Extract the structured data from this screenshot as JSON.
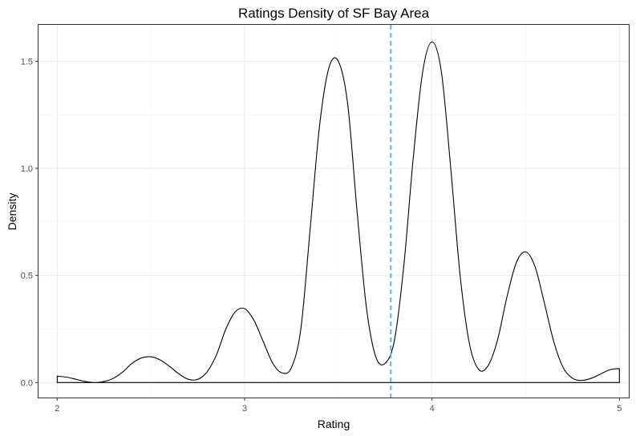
{
  "chart_data": {
    "type": "area",
    "title": "Ratings Density of SF Bay Area",
    "xlabel": "Rating",
    "ylabel": "Density",
    "xlim": [
      1.9,
      5.05
    ],
    "ylim": [
      -0.07,
      1.67
    ],
    "xticks": [
      2,
      3,
      4,
      5
    ],
    "yticks": [
      0.0,
      0.5,
      1.0,
      1.5
    ],
    "xtick_labels": [
      "2",
      "3",
      "4",
      "5"
    ],
    "ytick_labels": [
      "0.0",
      "0.5",
      "1.0",
      "1.5"
    ],
    "grid": true,
    "legend": "none",
    "series": [
      {
        "x": [
          2.0,
          2.05,
          2.1,
          2.15,
          2.2,
          2.25,
          2.3,
          2.35,
          2.4,
          2.45,
          2.5,
          2.55,
          2.6,
          2.65,
          2.7,
          2.75,
          2.8,
          2.85,
          2.9,
          2.95,
          3.0,
          3.05,
          3.1,
          3.15,
          3.2,
          3.25,
          3.3,
          3.35,
          3.4,
          3.45,
          3.5,
          3.55,
          3.6,
          3.65,
          3.7,
          3.75,
          3.8,
          3.85,
          3.9,
          3.95,
          4.0,
          4.05,
          4.1,
          4.15,
          4.2,
          4.25,
          4.3,
          4.35,
          4.4,
          4.45,
          4.5,
          4.55,
          4.6,
          4.65,
          4.7,
          4.75,
          4.8,
          4.85,
          4.9,
          4.95,
          5.0
        ],
        "y": [
          0.03,
          0.025,
          0.015,
          0.005,
          0.0,
          0.005,
          0.02,
          0.05,
          0.09,
          0.115,
          0.12,
          0.105,
          0.075,
          0.04,
          0.015,
          0.015,
          0.05,
          0.13,
          0.25,
          0.33,
          0.345,
          0.29,
          0.19,
          0.09,
          0.045,
          0.07,
          0.25,
          0.72,
          1.2,
          1.47,
          1.5,
          1.3,
          0.8,
          0.35,
          0.12,
          0.09,
          0.2,
          0.55,
          1.05,
          1.45,
          1.59,
          1.45,
          1.0,
          0.5,
          0.18,
          0.06,
          0.08,
          0.2,
          0.4,
          0.56,
          0.61,
          0.54,
          0.37,
          0.19,
          0.07,
          0.02,
          0.01,
          0.02,
          0.04,
          0.06,
          0.065
        ]
      }
    ],
    "vline": {
      "x": 3.78,
      "color": "#56b4e9",
      "style": "dashed"
    },
    "colors": {
      "line": "#000000",
      "vline": "#56b4e9",
      "grid": "#ebebeb",
      "border": "#333333"
    }
  }
}
